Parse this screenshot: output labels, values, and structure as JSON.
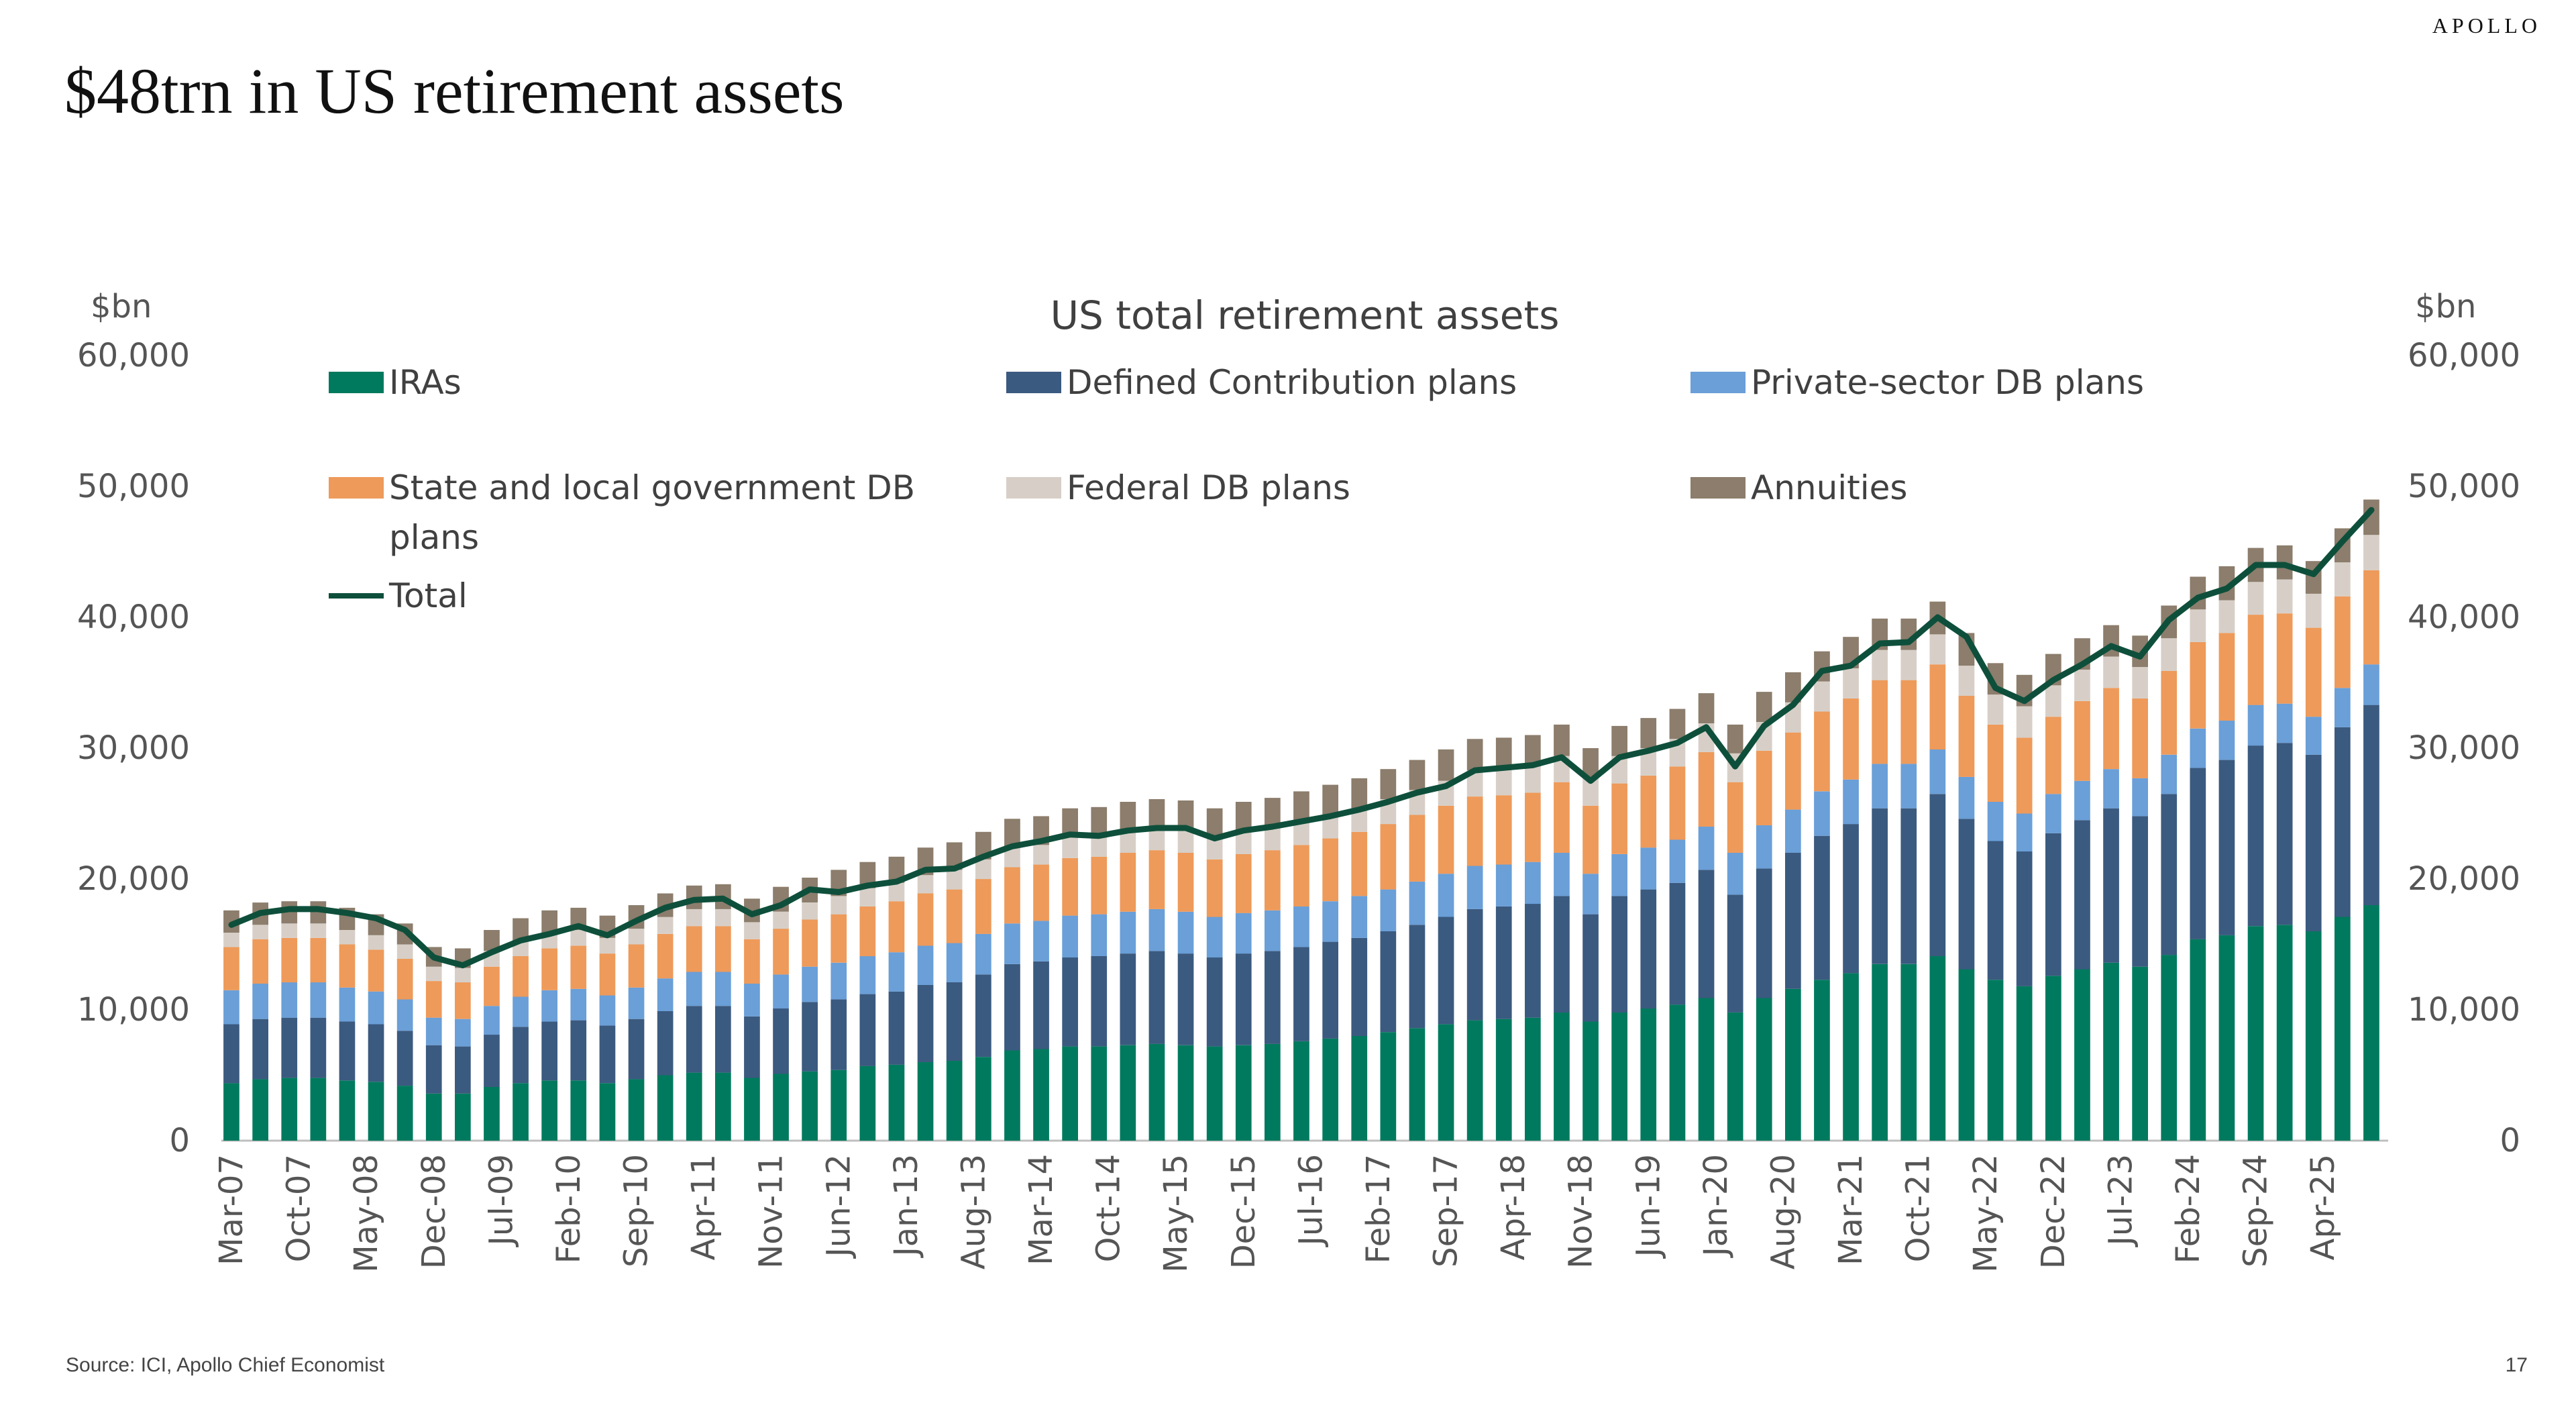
{
  "page": {
    "brand": "APOLLO",
    "title": "$48trn in US retirement assets",
    "source": "Source: ICI, Apollo Chief Economist",
    "page_number": "17"
  },
  "chart_data": {
    "type": "bar",
    "stacked": true,
    "title": "US total retirement assets",
    "ylabel_left": "$bn",
    "ylabel_right": "$bn",
    "ylim": [
      0,
      60000
    ],
    "yticks": [
      0,
      10000,
      20000,
      30000,
      40000,
      50000,
      60000
    ],
    "ytick_labels": [
      "0",
      "10,000",
      "20,000",
      "30,000",
      "40,000",
      "50,000",
      "60,000"
    ],
    "grid": false,
    "legend_position": "top",
    "categories": [
      "Mar-07",
      "Jun-07",
      "Sep-07",
      "Dec-07",
      "Mar-08",
      "Jun-08",
      "Sep-08",
      "Dec-08",
      "Mar-09",
      "Jun-09",
      "Sep-09",
      "Dec-09",
      "Mar-10",
      "Jun-10",
      "Sep-10",
      "Dec-10",
      "Mar-11",
      "Jun-11",
      "Sep-11",
      "Dec-11",
      "Mar-12",
      "Jun-12",
      "Sep-12",
      "Dec-12",
      "Mar-13",
      "Jun-13",
      "Sep-13",
      "Dec-13",
      "Mar-14",
      "Jun-14",
      "Sep-14",
      "Dec-14",
      "Mar-15",
      "Jun-15",
      "Sep-15",
      "Dec-15",
      "Mar-16",
      "Jun-16",
      "Sep-16",
      "Dec-16",
      "Mar-17",
      "Jun-17",
      "Sep-17",
      "Dec-17",
      "Mar-18",
      "Jun-18",
      "Sep-18",
      "Dec-18",
      "Mar-19",
      "Jun-19",
      "Sep-19",
      "Dec-19",
      "Mar-20",
      "Jun-20",
      "Sep-20",
      "Dec-20",
      "Mar-21",
      "Jun-21",
      "Sep-21",
      "Dec-21",
      "Mar-22",
      "Jun-22",
      "Sep-22",
      "Dec-22",
      "Mar-23",
      "Jun-23",
      "Sep-23",
      "Dec-23",
      "Mar-24",
      "Jun-24",
      "Sep-24",
      "Dec-24",
      "Mar-25",
      "Jun-25",
      "Sep-25"
    ],
    "x_tick_labels": [
      "Mar-07",
      "Oct-07",
      "May-08",
      "Dec-08",
      "Jul-09",
      "Feb-10",
      "Sep-10",
      "Apr-11",
      "Nov-11",
      "Jun-12",
      "Jan-13",
      "Aug-13",
      "Mar-14",
      "Oct-14",
      "May-15",
      "Dec-15",
      "Jul-16",
      "Feb-17",
      "Sep-17",
      "Apr-18",
      "Nov-18",
      "Jun-19",
      "Jan-20",
      "Aug-20",
      "Mar-21",
      "Oct-21",
      "May-22",
      "Dec-22",
      "Jul-23",
      "Feb-24",
      "Sep-24",
      "Apr-25"
    ],
    "series": [
      {
        "name": "IRAs",
        "color": "#007a5e",
        "values": [
          4400,
          4700,
          4800,
          4800,
          4600,
          4500,
          4200,
          3600,
          3600,
          4100,
          4400,
          4600,
          4600,
          4400,
          4700,
          5000,
          5200,
          5200,
          4800,
          5100,
          5300,
          5400,
          5700,
          5800,
          6000,
          6100,
          6400,
          6900,
          7000,
          7200,
          7200,
          7300,
          7400,
          7300,
          7200,
          7300,
          7400,
          7600,
          7800,
          8000,
          8300,
          8600,
          8900,
          9200,
          9300,
          9400,
          9800,
          9100,
          9800,
          10100,
          10400,
          10900,
          9800,
          10900,
          11600,
          12300,
          12800,
          13500,
          13500,
          14100,
          13100,
          12300,
          11800,
          12600,
          13100,
          13600,
          13300,
          14200,
          15400,
          15700,
          16400,
          16500,
          16000,
          17100,
          18000
        ]
      },
      {
        "name": "Defined Contribution plans",
        "color": "#3b5a7f",
        "values": [
          4500,
          4600,
          4600,
          4600,
          4500,
          4400,
          4200,
          3700,
          3600,
          4000,
          4300,
          4500,
          4600,
          4400,
          4600,
          4900,
          5100,
          5100,
          4700,
          5000,
          5300,
          5400,
          5500,
          5600,
          5900,
          6000,
          6300,
          6600,
          6700,
          6800,
          6900,
          7000,
          7100,
          7000,
          6800,
          7000,
          7100,
          7200,
          7400,
          7500,
          7700,
          7900,
          8200,
          8500,
          8600,
          8700,
          8900,
          8200,
          8900,
          9100,
          9300,
          9800,
          9000,
          9900,
          10400,
          11000,
          11400,
          11900,
          11900,
          12400,
          11500,
          10600,
          10300,
          10900,
          11400,
          11800,
          11500,
          12300,
          13100,
          13400,
          13800,
          13900,
          13500,
          14500,
          15300
        ]
      },
      {
        "name": "Private-sector DB plans",
        "color": "#6a9fd8",
        "values": [
          2600,
          2700,
          2700,
          2700,
          2600,
          2500,
          2400,
          2100,
          2100,
          2200,
          2300,
          2400,
          2400,
          2300,
          2400,
          2500,
          2600,
          2600,
          2500,
          2600,
          2700,
          2800,
          2900,
          3000,
          3000,
          3000,
          3100,
          3100,
          3100,
          3200,
          3200,
          3200,
          3200,
          3200,
          3100,
          3100,
          3100,
          3100,
          3100,
          3200,
          3200,
          3300,
          3300,
          3300,
          3200,
          3200,
          3300,
          3100,
          3200,
          3200,
          3300,
          3300,
          3200,
          3300,
          3300,
          3400,
          3400,
          3400,
          3400,
          3400,
          3200,
          3000,
          2900,
          3000,
          3000,
          3000,
          2900,
          3000,
          3000,
          3000,
          3100,
          3000,
          2900,
          3000,
          3100
        ]
      },
      {
        "name": "State and local government DB plans",
        "color": "#ee9a5a",
        "values": [
          3300,
          3400,
          3400,
          3400,
          3300,
          3200,
          3100,
          2800,
          2800,
          3000,
          3100,
          3200,
          3300,
          3200,
          3300,
          3400,
          3500,
          3500,
          3400,
          3500,
          3600,
          3700,
          3800,
          3900,
          4000,
          4100,
          4200,
          4300,
          4300,
          4400,
          4400,
          4500,
          4500,
          4500,
          4400,
          4500,
          4600,
          4700,
          4800,
          4900,
          5000,
          5100,
          5200,
          5300,
          5300,
          5300,
          5400,
          5200,
          5400,
          5500,
          5600,
          5700,
          5400,
          5700,
          5900,
          6100,
          6200,
          6400,
          6400,
          6500,
          6200,
          5900,
          5800,
          5900,
          6100,
          6200,
          6100,
          6400,
          6600,
          6700,
          6900,
          6900,
          6800,
          7000,
          7200
        ]
      },
      {
        "name": "Federal DB plans",
        "color": "#d7cfc7",
        "values": [
          1100,
          1100,
          1100,
          1100,
          1100,
          1100,
          1100,
          1100,
          1100,
          1200,
          1200,
          1200,
          1200,
          1200,
          1200,
          1300,
          1300,
          1300,
          1300,
          1300,
          1300,
          1400,
          1400,
          1400,
          1400,
          1500,
          1500,
          1500,
          1500,
          1600,
          1600,
          1600,
          1600,
          1700,
          1700,
          1700,
          1700,
          1800,
          1800,
          1800,
          1900,
          1900,
          1900,
          2000,
          2000,
          2000,
          2000,
          2100,
          2100,
          2100,
          2100,
          2200,
          2200,
          2200,
          2300,
          2300,
          2300,
          2300,
          2300,
          2300,
          2300,
          2300,
          2400,
          2400,
          2400,
          2400,
          2400,
          2500,
          2500,
          2500,
          2500,
          2600,
          2600,
          2600,
          2700
        ]
      },
      {
        "name": "Annuities",
        "color": "#8c7d6c",
        "values": [
          1700,
          1700,
          1700,
          1700,
          1700,
          1600,
          1600,
          1500,
          1500,
          1600,
          1700,
          1700,
          1700,
          1700,
          1800,
          1800,
          1800,
          1900,
          1800,
          1900,
          1900,
          2000,
          2000,
          2000,
          2100,
          2100,
          2100,
          2200,
          2200,
          2200,
          2200,
          2300,
          2300,
          2300,
          2200,
          2300,
          2300,
          2300,
          2300,
          2300,
          2300,
          2300,
          2400,
          2400,
          2400,
          2400,
          2400,
          2300,
          2300,
          2300,
          2300,
          2300,
          2200,
          2300,
          2300,
          2300,
          2400,
          2400,
          2400,
          2500,
          2500,
          2400,
          2400,
          2400,
          2400,
          2400,
          2400,
          2500,
          2500,
          2600,
          2600,
          2600,
          2500,
          2600,
          2700
        ]
      }
    ],
    "total": {
      "name": "Total",
      "color": "#0e4f3b",
      "values": [
        16500,
        17400,
        17700,
        17700,
        17400,
        17000,
        16100,
        14000,
        13400,
        14400,
        15300,
        15800,
        16400,
        15700,
        16800,
        17800,
        18400,
        18500,
        17300,
        18000,
        19200,
        19000,
        19500,
        19800,
        20700,
        20800,
        21700,
        22500,
        22900,
        23400,
        23300,
        23700,
        23900,
        23900,
        23100,
        23700,
        24000,
        24400,
        24800,
        25300,
        25900,
        26600,
        27100,
        28300,
        28500,
        28700,
        29300,
        27500,
        29300,
        29800,
        30400,
        31600,
        28600,
        31700,
        33300,
        35900,
        36300,
        38000,
        38100,
        40000,
        38500,
        34600,
        33600,
        35200,
        36400,
        37800,
        37000,
        39800,
        41500,
        42200,
        44000,
        44000,
        43300,
        45800,
        48200
      ]
    }
  }
}
